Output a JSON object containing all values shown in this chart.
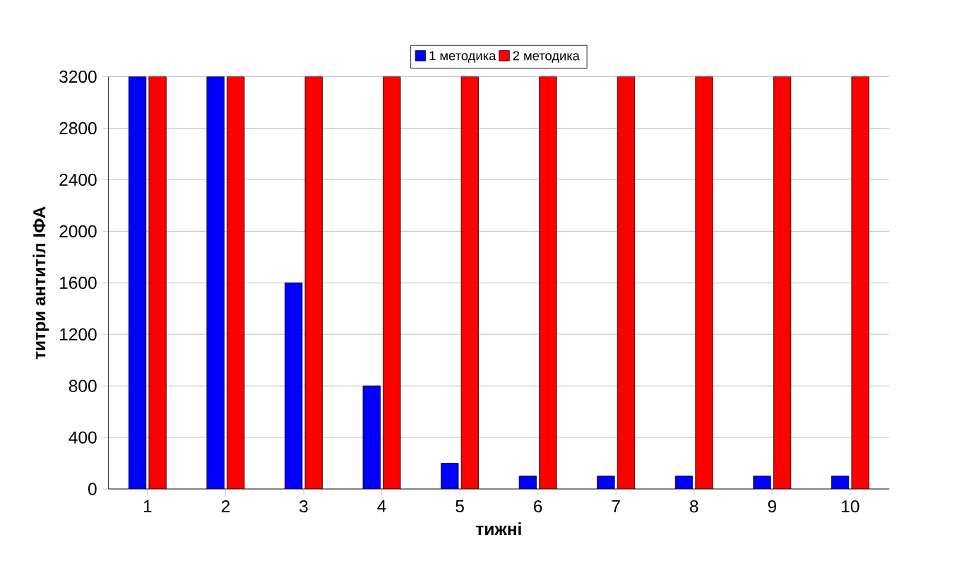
{
  "chart_data": {
    "type": "bar",
    "xlabel": "тижні",
    "ylabel": "титри антитіл ІФА",
    "categories": [
      "1",
      "2",
      "3",
      "4",
      "5",
      "6",
      "7",
      "8",
      "9",
      "10"
    ],
    "series": [
      {
        "name": "1 методика",
        "color": "#0000ff",
        "values": [
          3200,
          3200,
          1600,
          800,
          200,
          100,
          100,
          100,
          100,
          100
        ]
      },
      {
        "name": "2 методика",
        "color": "#ff0000",
        "values": [
          3200,
          3200,
          3200,
          3200,
          3200,
          3200,
          3200,
          3200,
          3200,
          3200
        ]
      }
    ],
    "ylim": [
      0,
      3200
    ],
    "yticks": [
      0,
      400,
      800,
      1200,
      1600,
      2000,
      2400,
      2800,
      3200
    ],
    "grid": "y",
    "legend": "top"
  }
}
